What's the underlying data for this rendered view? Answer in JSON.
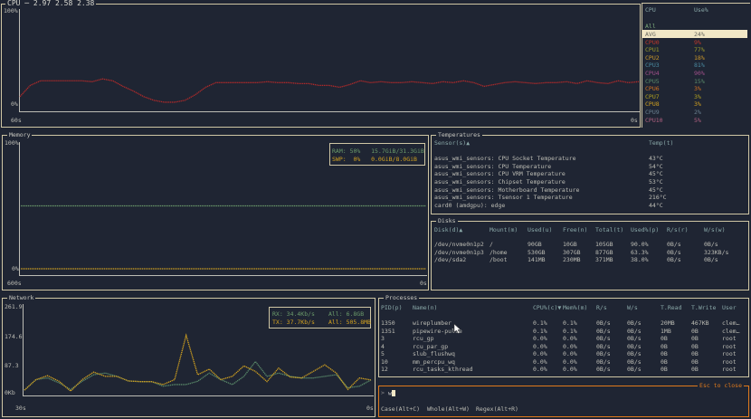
{
  "cpu": {
    "title": "CPU",
    "load_avg": "2.97 2.58 2.38",
    "y_max_label": "100%",
    "y_min_label": "0%",
    "x_start_label": "60s",
    "x_end_label": "0s",
    "line_color": "#b02a2a",
    "chart_data": {
      "type": "line",
      "xlabel": "",
      "ylabel": "",
      "ylim": [
        0,
        100
      ],
      "x_seconds_ago": [
        60,
        0
      ],
      "values": [
        8,
        20,
        25,
        25,
        25,
        25,
        25,
        24,
        27,
        25,
        19,
        14,
        8,
        4,
        2,
        2,
        4,
        10,
        18,
        23,
        23,
        23,
        23,
        23,
        24,
        23,
        23,
        22,
        22,
        20,
        20,
        18,
        21,
        25,
        23,
        24,
        23,
        23,
        24,
        23,
        22,
        24,
        23,
        25,
        23,
        19,
        21,
        23,
        24,
        23,
        22,
        23,
        23,
        24,
        22,
        25,
        23,
        22,
        25,
        23,
        24
      ]
    }
  },
  "cpu_list": {
    "col_cpu": "CPU",
    "col_use": "Use%",
    "all_label": "All",
    "rows": [
      {
        "name": "AVG",
        "use": "24%",
        "color": "#6a6a60"
      },
      {
        "name": "CPU0",
        "use": "9%",
        "color": "#c0392b"
      },
      {
        "name": "CPU1",
        "use": "77%",
        "color": "#9a9a2a"
      },
      {
        "name": "CPU2",
        "use": "18%",
        "color": "#c8962a"
      },
      {
        "name": "CPU3",
        "use": "81%",
        "color": "#4a8aa0"
      },
      {
        "name": "CPU4",
        "use": "90%",
        "color": "#a0508a"
      },
      {
        "name": "CPU5",
        "use": "15%",
        "color": "#5a8a6a"
      },
      {
        "name": "CPU6",
        "use": "3%",
        "color": "#d07020"
      },
      {
        "name": "CPU7",
        "use": "3%",
        "color": "#b0a020"
      },
      {
        "name": "CPU8",
        "use": "3%",
        "color": "#d0a020"
      },
      {
        "name": "CPU9",
        "use": "2%",
        "color": "#6a8090"
      },
      {
        "name": "CPU10",
        "use": "5%",
        "color": "#b06080"
      }
    ]
  },
  "memory": {
    "title": "Memory",
    "y_max_label": "100%",
    "y_min_label": "0%",
    "x_start_label": "600s",
    "x_end_label": "0s",
    "ram_label": "RAM:",
    "ram_pct": "50%",
    "ram_value": "15.7GiB/31.3GiB",
    "ram_color": "#6a9a6a",
    "swp_label": "SWP:",
    "swp_pct": "0%",
    "swp_value": "0.0GiB/8.0GiB",
    "swp_color": "#d0a020",
    "chart_data": {
      "type": "line",
      "ylim": [
        0,
        100
      ],
      "series": [
        {
          "name": "RAM",
          "value": 50
        },
        {
          "name": "SWP",
          "value": 0
        }
      ]
    }
  },
  "temperatures": {
    "title": "Temperatures",
    "col_sensor": "Sensor(s)▲",
    "col_temp": "Temp(t)",
    "rows": [
      {
        "sensor": "asus_wmi_sensors: CPU Socket Temperature",
        "temp": "43°C"
      },
      {
        "sensor": "asus_wmi_sensors: CPU Temperature",
        "temp": "54°C"
      },
      {
        "sensor": "asus_wmi_sensors: CPU VRM Temperature",
        "temp": "45°C"
      },
      {
        "sensor": "asus_wmi_sensors: Chipset Temperature",
        "temp": "53°C"
      },
      {
        "sensor": "asus_wmi_sensors: Motherboard Temperature",
        "temp": "45°C"
      },
      {
        "sensor": "asus_wmi_sensors: Tsensor 1 Temperature",
        "temp": "216°C"
      },
      {
        "sensor": "card0 (amdgpu): edge",
        "temp": "44°C"
      }
    ]
  },
  "disks": {
    "title": "Disks",
    "columns": [
      "Disk(d)▲",
      "Mount(m)",
      "Used(u)",
      "Free(n)",
      "Total(t)",
      "Used%(p)",
      "R/s(r)",
      "W/s(w)"
    ],
    "rows": [
      [
        "/dev/nvme0n1p2",
        "/",
        "90GB",
        "10GB",
        "105GB",
        "90.0%",
        "0B/s",
        "0B/s"
      ],
      [
        "/dev/nvme0n1p3",
        "/home",
        "530GB",
        "307GB",
        "877GB",
        "63.3%",
        "0B/s",
        "323KB/s"
      ],
      [
        "/dev/sda2",
        "/boot",
        "141MB",
        "230MB",
        "371MB",
        "38.0%",
        "0B/s",
        "0B/s"
      ]
    ]
  },
  "network": {
    "title": "Network",
    "y_labels": [
      "261.9",
      "174.6",
      "87.3",
      "0Kb"
    ],
    "x_start_label": "30s",
    "x_end_label": "0s",
    "rx_label": "RX: 34.4Kb/s",
    "rx_total": "All: 6.8GB",
    "rx_color": "#5a8a6a",
    "tx_label": "TX: 37.7Kb/s",
    "tx_total": "All: 505.8MB",
    "tx_color": "#d0a020",
    "chart_data": {
      "type": "line",
      "ylim": [
        0,
        261.9
      ],
      "x_seconds_ago": [
        30,
        0
      ],
      "series": [
        {
          "name": "RX",
          "values": [
            8,
            40,
            45,
            30,
            10,
            35,
            55,
            60,
            50,
            36,
            34,
            34,
            20,
            25,
            25,
            35,
            60,
            40,
            25,
            50,
            95,
            50,
            60,
            50,
            45,
            45,
            50,
            55,
            15,
            20,
            39
          ]
        },
        {
          "name": "TX",
          "values": [
            8,
            40,
            52,
            35,
            5,
            40,
            63,
            50,
            50,
            36,
            34,
            34,
            25,
            40,
            175,
            55,
            72,
            40,
            50,
            82,
            65,
            34,
            75,
            48,
            45,
            65,
            85,
            60,
            10,
            45,
            39
          ]
        }
      ]
    }
  },
  "processes": {
    "title": "Processes",
    "columns": [
      "PID(p)",
      "Name(n)",
      "CPU%(c)▼",
      "Mem%(m)",
      "R/s",
      "W/s",
      "T.Read",
      "T.Write",
      "User"
    ],
    "rows": [
      [
        "1350",
        "wireplumber",
        "0.1%",
        "0.1%",
        "0B/s",
        "0B/s",
        "20MB",
        "467KB",
        "clem…"
      ],
      [
        "1351",
        "pipewire-pulse",
        "0.1%",
        "0.1%",
        "0B/s",
        "0B/s",
        "1MB",
        "0B",
        "clem…"
      ],
      [
        "3",
        "rcu_gp",
        "0.0%",
        "0.0%",
        "0B/s",
        "0B/s",
        "0B",
        "0B",
        "root"
      ],
      [
        "4",
        "rcu_par_gp",
        "0.0%",
        "0.0%",
        "0B/s",
        "0B/s",
        "0B",
        "0B",
        "root"
      ],
      [
        "5",
        "slub_flushwq",
        "0.0%",
        "0.0%",
        "0B/s",
        "0B/s",
        "0B",
        "0B",
        "root"
      ],
      [
        "10",
        "mm_percpu_wq",
        "0.0%",
        "0.0%",
        "0B/s",
        "0B/s",
        "0B",
        "0B",
        "root"
      ],
      [
        "12",
        "rcu_tasks_kthread",
        "0.0%",
        "0.0%",
        "0B/s",
        "0B/s",
        "0B",
        "0B",
        "root"
      ]
    ]
  },
  "search": {
    "close_hint": "Esc to close",
    "prompt": ">",
    "query": "w",
    "options": [
      "Case(Alt+C)",
      "Whole(Alt+W)",
      "Regex(Alt+R)"
    ],
    "accent": "#e07a1c"
  }
}
